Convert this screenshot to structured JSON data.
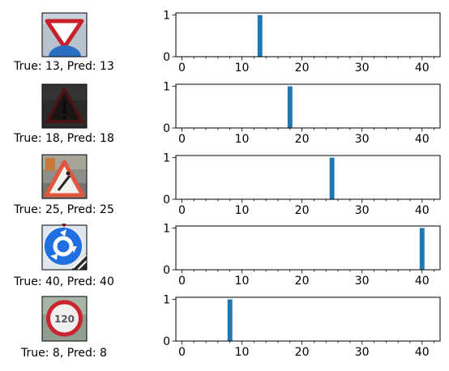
{
  "chart_data": [
    {
      "type": "bar",
      "image_icon": "yield-sign-icon",
      "caption": "True: 13, Pred: 13",
      "x": [
        13
      ],
      "values": [
        1
      ],
      "xlim": [
        -1,
        43
      ],
      "ylim": [
        0,
        1.05
      ],
      "xticks": [
        "0",
        "10",
        "20",
        "30",
        "40"
      ],
      "yticks": [
        "0",
        "1"
      ],
      "bar_color": "#1f77b4"
    },
    {
      "type": "bar",
      "image_icon": "general-caution-sign-icon",
      "caption": "True: 18, Pred: 18",
      "x": [
        18
      ],
      "values": [
        1
      ],
      "xlim": [
        -1,
        43
      ],
      "ylim": [
        0,
        1.05
      ],
      "xticks": [
        "0",
        "10",
        "20",
        "30",
        "40"
      ],
      "yticks": [
        "0",
        "1"
      ],
      "bar_color": "#1f77b4"
    },
    {
      "type": "bar",
      "image_icon": "road-work-sign-icon",
      "caption": "True: 25, Pred: 25",
      "x": [
        25
      ],
      "values": [
        1
      ],
      "xlim": [
        -1,
        43
      ],
      "ylim": [
        0,
        1.05
      ],
      "xticks": [
        "0",
        "10",
        "20",
        "30",
        "40"
      ],
      "yticks": [
        "0",
        "1"
      ],
      "bar_color": "#1f77b4"
    },
    {
      "type": "bar",
      "image_icon": "roundabout-sign-icon",
      "caption": "True: 40, Pred: 40",
      "x": [
        40
      ],
      "values": [
        1
      ],
      "xlim": [
        -1,
        43
      ],
      "ylim": [
        0,
        1.05
      ],
      "xticks": [
        "0",
        "10",
        "20",
        "30",
        "40"
      ],
      "yticks": [
        "0",
        "1"
      ],
      "bar_color": "#1f77b4"
    },
    {
      "type": "bar",
      "image_icon": "speed-limit-120-sign-icon",
      "sign_text": "120",
      "caption": "True: 8, Pred: 8",
      "x": [
        8
      ],
      "values": [
        1
      ],
      "xlim": [
        -1,
        43
      ],
      "ylim": [
        0,
        1.05
      ],
      "xticks": [
        "0",
        "10",
        "20",
        "30",
        "40"
      ],
      "yticks": [
        "0",
        "1"
      ],
      "bar_color": "#1f77b4"
    }
  ]
}
